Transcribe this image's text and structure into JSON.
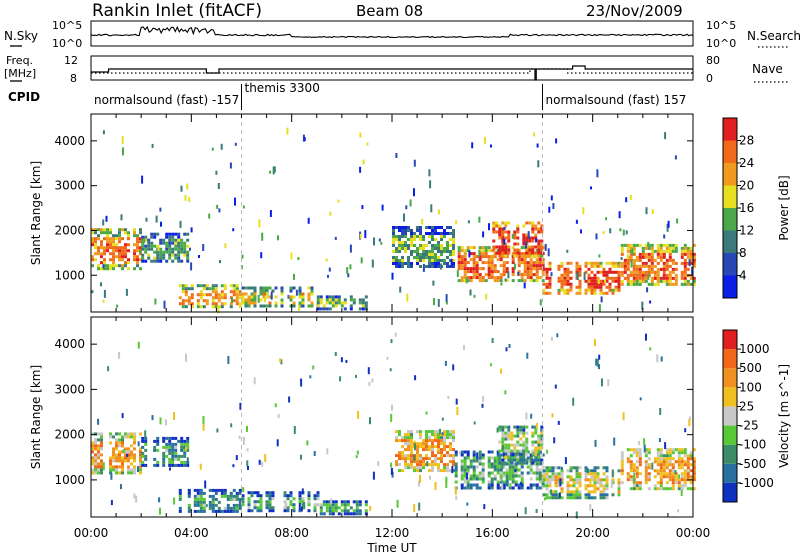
{
  "header": {
    "station": "Rankin Inlet (fitACF)",
    "beam": "Beam 08",
    "date": "23/Nov/2009"
  },
  "status_strips": {
    "nsky": {
      "label": "N.Sky",
      "tick_top": "10^5",
      "tick_bottom": "10^0"
    },
    "nsearch": {
      "label": "N.Search",
      "tick_top": "10^5",
      "tick_bottom": "10^0"
    },
    "freq": {
      "label_line1": "Freq.",
      "label_line2": "[MHz]",
      "tick_top": "12",
      "tick_bottom": "8"
    },
    "nave": {
      "label": "Nave",
      "tick_top": "80",
      "tick_bottom": "0"
    },
    "cpid": {
      "label": "CPID",
      "segments": [
        {
          "text": "normalsound (fast) -157",
          "start_hour": 0.0
        },
        {
          "text": "themis 3300",
          "start_hour": 6.0
        },
        {
          "text": "normalsound (fast) 157",
          "start_hour": 18.0
        }
      ]
    }
  },
  "chart_data": [
    {
      "type": "heatmap",
      "title": "Power",
      "xlabel": "Time UT",
      "ylabel": "Slant Range [km]",
      "x_range_hours": [
        0,
        24
      ],
      "ylim": [
        180,
        4600
      ],
      "yticks": [
        1000,
        2000,
        3000,
        4000
      ],
      "colorbar": {
        "label": "Power [dB]",
        "ticks": [
          "4",
          "8",
          "12",
          "16",
          "20",
          "24",
          "28"
        ],
        "colors": [
          "#0a1ee6",
          "#2848b8",
          "#3a7a7a",
          "#4aa84a",
          "#e6e020",
          "#f09a20",
          "#f06a1a",
          "#e02020"
        ]
      },
      "regions": [
        {
          "t0": 0.0,
          "t1": 2.0,
          "r0": 1150,
          "r1": 2050,
          "level": 0.75
        },
        {
          "t0": 2.0,
          "t1": 3.8,
          "r0": 1300,
          "r1": 1950,
          "level": 0.4
        },
        {
          "t0": 3.5,
          "t1": 6.0,
          "r0": 280,
          "r1": 800,
          "level": 0.7
        },
        {
          "t0": 6.0,
          "t1": 9.0,
          "r0": 300,
          "r1": 750,
          "level": 0.6
        },
        {
          "t0": 9.0,
          "t1": 11.0,
          "r0": 280,
          "r1": 550,
          "level": 0.45
        },
        {
          "t0": 12.0,
          "t1": 14.5,
          "r0": 1200,
          "r1": 2100,
          "level": 0.45
        },
        {
          "t0": 14.5,
          "t1": 18.0,
          "r0": 850,
          "r1": 1650,
          "level": 0.8
        },
        {
          "t0": 16.0,
          "t1": 18.0,
          "r0": 1400,
          "r1": 2200,
          "level": 0.9
        },
        {
          "t0": 18.0,
          "t1": 21.0,
          "r0": 600,
          "r1": 1300,
          "level": 0.9
        },
        {
          "t0": 21.0,
          "t1": 24.0,
          "r0": 800,
          "r1": 1700,
          "level": 0.8
        }
      ]
    },
    {
      "type": "heatmap",
      "title": "Velocity",
      "xlabel": "Time UT",
      "ylabel": "Slant Range [km]",
      "x_range_hours": [
        0,
        24
      ],
      "ylim": [
        180,
        4600
      ],
      "yticks": [
        1000,
        2000,
        3000,
        4000
      ],
      "colorbar": {
        "label": "Velocity [m s^-1]",
        "ticks": [
          "1000",
          "500",
          "100",
          "25",
          "-25",
          "-100",
          "-500",
          "-1000"
        ],
        "colors": [
          "#1030c0",
          "#2870a0",
          "#3c8c6a",
          "#58c838",
          "#c8c8c8",
          "#f0c020",
          "#f09020",
          "#f06818",
          "#e02020"
        ]
      },
      "regions": [
        {
          "t0": 0.0,
          "t1": 2.0,
          "r0": 1150,
          "r1": 2050,
          "level": 0.7
        },
        {
          "t0": 2.0,
          "t1": 3.8,
          "r0": 1300,
          "r1": 1950,
          "level": 0.3
        },
        {
          "t0": 3.5,
          "t1": 6.0,
          "r0": 280,
          "r1": 800,
          "level": 0.3
        },
        {
          "t0": 6.0,
          "t1": 9.0,
          "r0": 300,
          "r1": 750,
          "level": 0.35
        },
        {
          "t0": 9.0,
          "t1": 11.0,
          "r0": 280,
          "r1": 550,
          "level": 0.3
        },
        {
          "t0": 12.0,
          "t1": 14.5,
          "r0": 1200,
          "r1": 2100,
          "level": 0.7
        },
        {
          "t0": 14.5,
          "t1": 18.0,
          "r0": 850,
          "r1": 1650,
          "level": 0.35
        },
        {
          "t0": 16.0,
          "t1": 18.0,
          "r0": 1400,
          "r1": 2200,
          "level": 0.45
        },
        {
          "t0": 18.0,
          "t1": 21.0,
          "r0": 600,
          "r1": 1300,
          "level": 0.55
        },
        {
          "t0": 21.0,
          "t1": 24.0,
          "r0": 800,
          "r1": 1700,
          "level": 0.7
        }
      ]
    }
  ],
  "x_axis": {
    "ticks": [
      "00:00",
      "04:00",
      "08:00",
      "12:00",
      "16:00",
      "20:00",
      "00:00"
    ],
    "label": "Time UT"
  }
}
